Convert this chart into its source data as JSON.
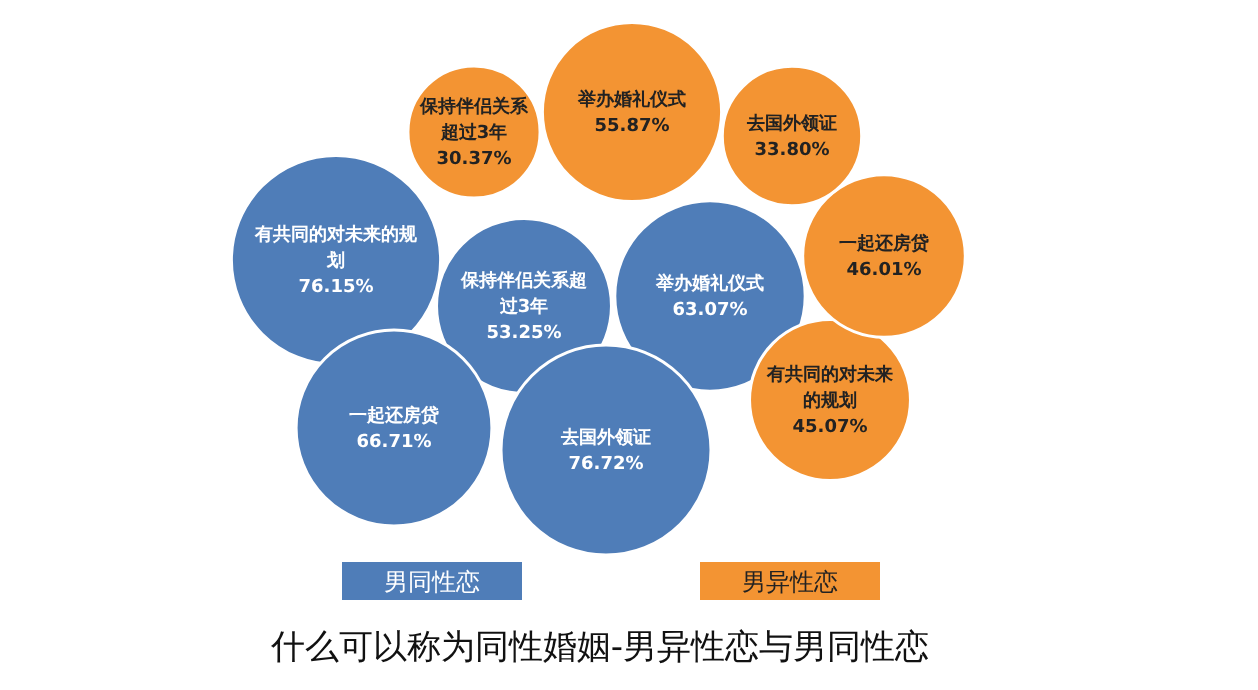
{
  "chart_data": {
    "type": "other",
    "title": "什么可以称为同性婚姻-男异性恋与男同性恋",
    "categories": [
      "有共同的对未来的规划",
      "保持伴侣关系超过3年",
      "举办婚礼仪式",
      "一起还房贷",
      "去国外领证"
    ],
    "series": [
      {
        "name": "男同性恋",
        "color": "#4f7db8",
        "values": [
          76.15,
          53.25,
          63.07,
          66.71,
          76.72
        ],
        "value_labels": [
          "76.15%",
          "53.25%",
          "63.07%",
          "66.71%",
          "76.72%"
        ]
      },
      {
        "name": "男异性恋",
        "color": "#f39433",
        "values": [
          45.07,
          30.37,
          55.87,
          46.01,
          33.8
        ],
        "value_labels": [
          "45.07%",
          "30.37%",
          "55.87%",
          "46.01%",
          "33.80%"
        ]
      }
    ],
    "legend": "bottom"
  }
}
